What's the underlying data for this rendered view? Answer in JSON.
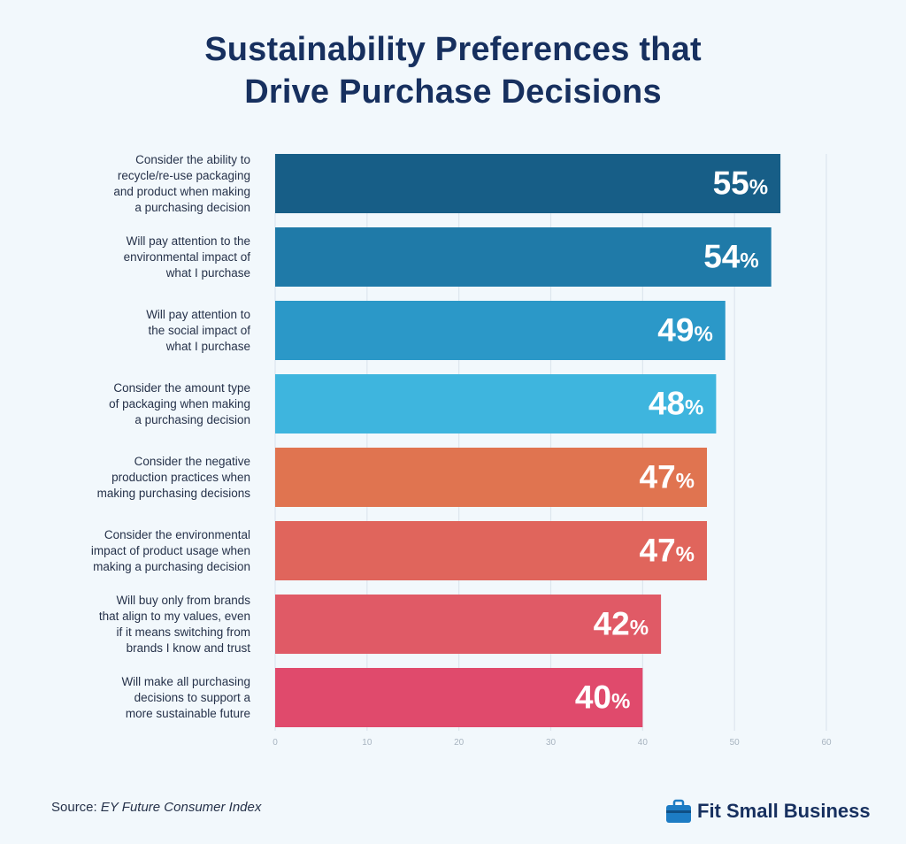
{
  "chart_data": {
    "type": "bar",
    "orientation": "horizontal",
    "title_lines": [
      "Sustainability Preferences that",
      "Drive Purchase Decisions"
    ],
    "categories": [
      [
        "Consider the ability to",
        "recycle/re-use packaging",
        "and product when making",
        "a purchasing decision"
      ],
      [
        "Will pay attention to the",
        "environmental impact of",
        "what I purchase"
      ],
      [
        "Will pay attention to",
        "the social impact of",
        "what I purchase"
      ],
      [
        "Consider the amount type",
        "of packaging when making",
        "a purchasing decision"
      ],
      [
        "Consider the negative",
        "production practices when",
        "making purchasing decisions"
      ],
      [
        "Consider the environmental",
        "impact of product usage when",
        "making a purchasing decision"
      ],
      [
        "Will buy only from brands",
        "that align to my values, even",
        "if it means switching from",
        "brands I know and trust"
      ],
      [
        "Will make all purchasing",
        "decisions to support a",
        "more sustainable future"
      ]
    ],
    "values": [
      55,
      54,
      49,
      48,
      47,
      47,
      42,
      40
    ],
    "value_suffix": "%",
    "bar_colors": [
      "#175e87",
      "#1f7aa8",
      "#2b98c8",
      "#3eb5de",
      "#e07450",
      "#e0655c",
      "#e05a66",
      "#e04a6c"
    ],
    "xlim": [
      0,
      60
    ],
    "xticks": [
      0,
      10,
      20,
      30,
      40,
      50,
      60
    ],
    "grid": true,
    "source_label": "Source:",
    "source_name": "EY Future Consumer Index"
  },
  "brand": {
    "name": "Fit Small Business",
    "icon": "briefcase-icon",
    "color": "#1d7cc4"
  }
}
